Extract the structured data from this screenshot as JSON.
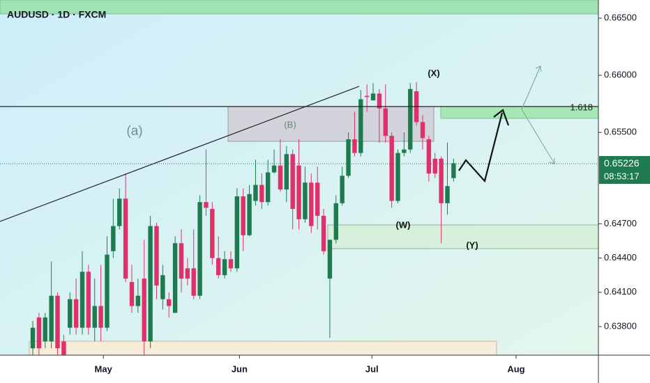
{
  "chart_data": {
    "type": "candlestick",
    "title": "AUDUSD · 1D · FXCM",
    "up_color": "#1e7b4f",
    "down_color": "#e0306a",
    "open": [
      0.6361,
      0.6388,
      0.6367,
      0.6367,
      0.6407,
      0.6367,
      0.6379,
      0.6404,
      0.6379,
      0.6428,
      0.6379,
      0.6398,
      0.6379,
      0.6446,
      0.6468,
      0.6492,
      0.6419,
      0.6398,
      0.6422,
      0.6367,
      0.6468,
      0.6404,
      0.6404,
      0.6392,
      0.6453,
      0.6431,
      0.6431,
      0.6407,
      0.6489,
      0.6483,
      0.644,
      0.6425,
      0.6439,
      0.6431,
      0.6494,
      0.646,
      0.649,
      0.6504,
      0.6489,
      0.6515,
      0.6521,
      0.65,
      0.6531,
      0.6521,
      0.6474,
      0.6506,
      0.6506,
      0.6477,
      0.6422,
      0.6456,
      0.6488,
      0.6512,
      0.6544,
      0.6532,
      0.6582,
      0.6578,
      0.6584,
      0.6571,
      0.6547,
      0.649,
      0.6532,
      0.6535,
      0.6586,
      0.6559,
      0.6544,
      0.6527,
      0.6527,
      0.6488,
      0.651
    ],
    "high": [
      0.6385,
      0.6392,
      0.6392,
      0.6437,
      0.641,
      0.6373,
      0.641,
      0.6422,
      0.6446,
      0.6434,
      0.6422,
      0.6434,
      0.6459,
      0.6492,
      0.6501,
      0.6514,
      0.6434,
      0.6422,
      0.6456,
      0.6477,
      0.6471,
      0.6434,
      0.641,
      0.6459,
      0.6465,
      0.644,
      0.6465,
      0.6495,
      0.6535,
      0.6489,
      0.6459,
      0.6446,
      0.6446,
      0.6501,
      0.6501,
      0.6504,
      0.6526,
      0.6514,
      0.6526,
      0.6535,
      0.6544,
      0.6538,
      0.6535,
      0.6544,
      0.652,
      0.6514,
      0.652,
      0.6483,
      0.6456,
      0.6495,
      0.652,
      0.655,
      0.6568,
      0.6587,
      0.6592,
      0.6593,
      0.6588,
      0.6592,
      0.655,
      0.6535,
      0.655,
      0.6593,
      0.6594,
      0.6565,
      0.6547,
      0.6532,
      0.6529,
      0.6541,
      0.6527
    ],
    "low": [
      0.6355,
      0.6355,
      0.6361,
      0.6361,
      0.6355,
      0.6355,
      0.6373,
      0.6373,
      0.6373,
      0.6373,
      0.6367,
      0.6367,
      0.6376,
      0.644,
      0.6465,
      0.6419,
      0.6392,
      0.6392,
      0.6355,
      0.6361,
      0.6404,
      0.6395,
      0.6388,
      0.6392,
      0.641,
      0.6416,
      0.6404,
      0.6404,
      0.6477,
      0.6434,
      0.6422,
      0.6422,
      0.6428,
      0.6428,
      0.6446,
      0.6459,
      0.6486,
      0.6483,
      0.6486,
      0.6514,
      0.6498,
      0.6489,
      0.6465,
      0.6465,
      0.6471,
      0.6462,
      0.6465,
      0.6443,
      0.637,
      0.6453,
      0.6486,
      0.651,
      0.6529,
      0.6529,
      0.6568,
      0.6578,
      0.6541,
      0.6541,
      0.6484,
      0.6488,
      0.6529,
      0.6532,
      0.6556,
      0.6535,
      0.6507,
      0.651,
      0.6453,
      0.6478,
      0.6507
    ],
    "close": [
      0.6379,
      0.6361,
      0.6388,
      0.6407,
      0.6361,
      0.6355,
      0.6404,
      0.6379,
      0.6428,
      0.6379,
      0.6398,
      0.6379,
      0.6443,
      0.6468,
      0.6492,
      0.6422,
      0.6398,
      0.6407,
      0.6367,
      0.6468,
      0.6416,
      0.6425,
      0.6398,
      0.6453,
      0.6422,
      0.6422,
      0.6407,
      0.6489,
      0.6484,
      0.644,
      0.6425,
      0.6439,
      0.6431,
      0.6494,
      0.646,
      0.6496,
      0.6504,
      0.6489,
      0.6515,
      0.6521,
      0.65,
      0.6531,
      0.6483,
      0.6474,
      0.6506,
      0.6468,
      0.6477,
      0.6446,
      0.6456,
      0.6488,
      0.6512,
      0.6544,
      0.6532,
      0.6579,
      0.6581,
      0.6584,
      0.6571,
      0.6547,
      0.649,
      0.6532,
      0.6535,
      0.6588,
      0.6559,
      0.6545,
      0.6514,
      0.6514,
      0.6488,
      0.6503,
      0.6523
    ],
    "xlim": [
      -5.3,
      91.4
    ],
    "xticks": [
      {
        "value": 11.4,
        "label": "May"
      },
      {
        "value": 33.4,
        "label": "Jun"
      },
      {
        "value": 54.8,
        "label": "Jul"
      },
      {
        "value": 78.1,
        "label": "Aug"
      }
    ],
    "ylim": [
      0.6355,
      0.66659
    ],
    "yticks": [
      {
        "value": 0.665,
        "label": "0.66500"
      },
      {
        "value": 0.66,
        "label": "0.66000"
      },
      {
        "value": 0.655,
        "label": "0.65500"
      },
      {
        "value": 0.647,
        "label": "0.64700"
      },
      {
        "value": 0.644,
        "label": "0.64400"
      },
      {
        "value": 0.641,
        "label": "0.64100"
      },
      {
        "value": 0.638,
        "label": "0.63800"
      }
    ],
    "last_price": 0.65226,
    "countdown": "08:53:17",
    "fib_label": "1.618",
    "annotations": [
      "(a)",
      "(B)",
      "(X)",
      "(W)",
      "(Y)"
    ]
  }
}
